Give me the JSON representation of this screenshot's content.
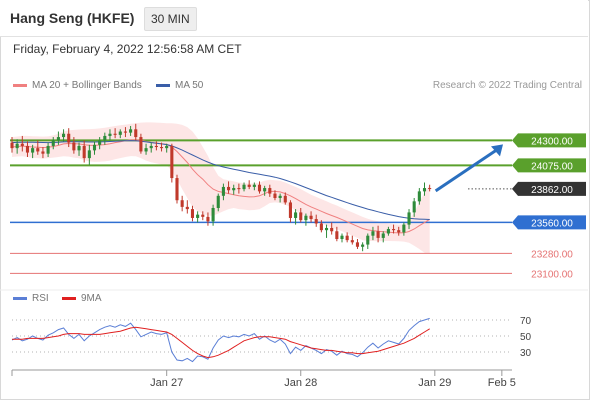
{
  "header": {
    "title": "Hang Seng (HKFE)",
    "period": "30 MIN",
    "timestamp": "Friday, February 4, 2022 12:56:58 AM CET"
  },
  "legend": {
    "ma20_label": "MA 20 + Bollinger Bands",
    "ma50_label": "MA 50",
    "research": "Research © 2022 Trading Central"
  },
  "rsi_legend": {
    "rsi_label": "RSI",
    "ma_label": "9MA"
  },
  "colors": {
    "candle_up": "#2e8b3a",
    "candle_down": "#c0392b",
    "ma20": "#f08080",
    "ma50": "#3a5ea8",
    "bollinger_fill": "#fde2e2",
    "resistance": "#5aa02c",
    "pivot": "#2f6fd1",
    "support": "#e57373",
    "last_price": "#333333",
    "rsi": "#5b7fd6",
    "rsi_ma": "#e02020",
    "arrow": "#2a6fbf"
  },
  "chart_data": [
    {
      "type": "candlestick",
      "title": "Hang Seng (HKFE)",
      "ylim": [
        22950,
        24520
      ],
      "xlim": [
        0,
        96
      ],
      "x_ticks": [
        {
          "x": 30,
          "label": "Jan 27"
        },
        {
          "x": 56,
          "label": "Jan 28"
        },
        {
          "x": 82,
          "label": "Jan 29"
        },
        {
          "x": 95,
          "label": "Feb 5"
        }
      ],
      "levels": [
        {
          "name": "resistance_2",
          "value": 24300,
          "label": "24300.00",
          "kind": "resistance"
        },
        {
          "name": "resistance_1",
          "value": 24075,
          "label": "24075.00",
          "kind": "resistance"
        },
        {
          "name": "last_price",
          "value": 23862,
          "label": "23862.00",
          "kind": "last"
        },
        {
          "name": "pivot",
          "value": 23560,
          "label": "23560.00",
          "kind": "pivot"
        },
        {
          "name": "support_1",
          "value": 23280,
          "label": "23280.00",
          "kind": "support"
        },
        {
          "name": "support_2",
          "value": 23100,
          "label": "23100.00",
          "kind": "support"
        }
      ],
      "candles": [
        [
          24280,
          24330,
          24190,
          24230
        ],
        [
          24230,
          24310,
          24180,
          24270
        ],
        [
          24270,
          24340,
          24200,
          24250
        ],
        [
          24250,
          24290,
          24150,
          24190
        ],
        [
          24190,
          24260,
          24140,
          24230
        ],
        [
          24230,
          24300,
          24170,
          24200
        ],
        [
          24200,
          24240,
          24140,
          24180
        ],
        [
          24180,
          24280,
          24150,
          24250
        ],
        [
          24250,
          24330,
          24220,
          24300
        ],
        [
          24300,
          24380,
          24260,
          24330
        ],
        [
          24330,
          24400,
          24290,
          24360
        ],
        [
          24360,
          24410,
          24240,
          24280
        ],
        [
          24280,
          24330,
          24180,
          24210
        ],
        [
          24210,
          24280,
          24160,
          24250
        ],
        [
          24250,
          24300,
          24100,
          24140
        ],
        [
          24140,
          24260,
          24080,
          24210
        ],
        [
          24210,
          24290,
          24170,
          24260
        ],
        [
          24260,
          24330,
          24220,
          24300
        ],
        [
          24300,
          24370,
          24260,
          24340
        ],
        [
          24340,
          24400,
          24300,
          24360
        ],
        [
          24360,
          24410,
          24320,
          24350
        ],
        [
          24350,
          24400,
          24320,
          24380
        ],
        [
          24380,
          24420,
          24330,
          24370
        ],
        [
          24370,
          24430,
          24340,
          24400
        ],
        [
          24400,
          24450,
          24300,
          24330
        ],
        [
          24330,
          24360,
          24180,
          24200
        ],
        [
          24200,
          24270,
          24170,
          24230
        ],
        [
          24230,
          24280,
          24190,
          24250
        ],
        [
          24250,
          24290,
          24210,
          24240
        ],
        [
          24240,
          24280,
          24200,
          24230
        ],
        [
          24230,
          24270,
          24190,
          24250
        ],
        [
          24250,
          24270,
          23920,
          23960
        ],
        [
          23960,
          23990,
          23730,
          23760
        ],
        [
          23760,
          23800,
          23660,
          23700
        ],
        [
          23700,
          23760,
          23640,
          23680
        ],
        [
          23680,
          23710,
          23570,
          23600
        ],
        [
          23600,
          23660,
          23560,
          23630
        ],
        [
          23630,
          23660,
          23580,
          23610
        ],
        [
          23610,
          23650,
          23530,
          23570
        ],
        [
          23570,
          23720,
          23530,
          23690
        ],
        [
          23690,
          23820,
          23660,
          23800
        ],
        [
          23800,
          23910,
          23760,
          23880
        ],
        [
          23880,
          23930,
          23820,
          23850
        ],
        [
          23850,
          23900,
          23810,
          23870
        ],
        [
          23870,
          23910,
          23820,
          23860
        ],
        [
          23860,
          23920,
          23840,
          23900
        ],
        [
          23900,
          23940,
          23860,
          23880
        ],
        [
          23880,
          23920,
          23850,
          23900
        ],
        [
          23900,
          23930,
          23820,
          23840
        ],
        [
          23840,
          23890,
          23800,
          23870
        ],
        [
          23870,
          23900,
          23790,
          23820
        ],
        [
          23820,
          23850,
          23760,
          23780
        ],
        [
          23780,
          23820,
          23740,
          23800
        ],
        [
          23800,
          23830,
          23720,
          23740
        ],
        [
          23740,
          23760,
          23560,
          23600
        ],
        [
          23600,
          23680,
          23540,
          23650
        ],
        [
          23650,
          23690,
          23560,
          23580
        ],
        [
          23580,
          23640,
          23530,
          23620
        ],
        [
          23620,
          23660,
          23560,
          23590
        ],
        [
          23590,
          23630,
          23520,
          23550
        ],
        [
          23550,
          23580,
          23470,
          23490
        ],
        [
          23490,
          23540,
          23420,
          23510
        ],
        [
          23510,
          23560,
          23450,
          23480
        ],
        [
          23480,
          23520,
          23390,
          23410
        ],
        [
          23410,
          23460,
          23380,
          23440
        ],
        [
          23440,
          23470,
          23380,
          23400
        ],
        [
          23400,
          23440,
          23360,
          23380
        ],
        [
          23380,
          23410,
          23320,
          23340
        ],
        [
          23340,
          23380,
          23300,
          23360
        ],
        [
          23360,
          23460,
          23320,
          23440
        ],
        [
          23440,
          23520,
          23400,
          23480
        ],
        [
          23480,
          23530,
          23380,
          23420
        ],
        [
          23420,
          23480,
          23380,
          23460
        ],
        [
          23460,
          23520,
          23440,
          23500
        ],
        [
          23500,
          23540,
          23460,
          23490
        ],
        [
          23490,
          23520,
          23440,
          23470
        ],
        [
          23470,
          23560,
          23440,
          23540
        ],
        [
          23540,
          23680,
          23500,
          23650
        ],
        [
          23650,
          23780,
          23610,
          23750
        ],
        [
          23750,
          23870,
          23720,
          23840
        ],
        [
          23840,
          23920,
          23800,
          23870
        ],
        [
          23870,
          23900,
          23840,
          23862
        ]
      ],
      "ma20": [
        24240,
        24245,
        24248,
        24245,
        24240,
        24238,
        24235,
        24238,
        24245,
        24255,
        24268,
        24272,
        24270,
        24268,
        24260,
        24256,
        24255,
        24258,
        24262,
        24270,
        24280,
        24288,
        24296,
        24304,
        24306,
        24300,
        24290,
        24282,
        24276,
        24270,
        24266,
        24240,
        24200,
        24150,
        24100,
        24040,
        23990,
        23950,
        23900,
        23860,
        23840,
        23830,
        23820,
        23810,
        23800,
        23795,
        23790,
        23792,
        23800,
        23820,
        23840,
        23840,
        23835,
        23820,
        23800,
        23775,
        23748,
        23722,
        23700,
        23680,
        23660,
        23640,
        23622,
        23605,
        23585,
        23565,
        23545,
        23525,
        23505,
        23492,
        23486,
        23480,
        23476,
        23472,
        23468,
        23465,
        23466,
        23478,
        23500,
        23530,
        23558,
        23588
      ],
      "ma50": [
        24280,
        24282,
        24284,
        24284,
        24283,
        24282,
        24281,
        24280,
        24281,
        24283,
        24286,
        24288,
        24288,
        24288,
        24286,
        24285,
        24285,
        24286,
        24288,
        24290,
        24292,
        24294,
        24296,
        24298,
        24297,
        24292,
        24286,
        24280,
        24274,
        24268,
        24262,
        24250,
        24232,
        24212,
        24190,
        24168,
        24146,
        24124,
        24104,
        24086,
        24072,
        24060,
        24050,
        24040,
        24030,
        24020,
        24010,
        24002,
        23994,
        23986,
        23978,
        23968,
        23956,
        23942,
        23926,
        23910,
        23892,
        23874,
        23856,
        23838,
        23820,
        23802,
        23786,
        23770,
        23754,
        23738,
        23722,
        23708,
        23694,
        23680,
        23668,
        23656,
        23644,
        23632,
        23622,
        23612,
        23604,
        23598,
        23592,
        23590,
        23588,
        23586
      ],
      "bb_upper": [
        24330,
        24335,
        24340,
        24340,
        24338,
        24336,
        24334,
        24336,
        24345,
        24360,
        24380,
        24390,
        24395,
        24398,
        24400,
        24402,
        24404,
        24408,
        24414,
        24422,
        24430,
        24436,
        24442,
        24450,
        24455,
        24460,
        24462,
        24462,
        24460,
        24458,
        24455,
        24455,
        24450,
        24440,
        24420,
        24380,
        24320,
        24240,
        24160,
        24060,
        23980,
        23950,
        23940,
        23930,
        23920,
        23915,
        23910,
        23912,
        23920,
        23935,
        23945,
        23940,
        23935,
        23920,
        23900,
        23880,
        23860,
        23835,
        23810,
        23790,
        23770,
        23750,
        23730,
        23712,
        23690,
        23670,
        23650,
        23630,
        23610,
        23592,
        23580,
        23570,
        23560,
        23552,
        23545,
        23540,
        23545,
        23580,
        23650,
        23740,
        23830,
        23900
      ],
      "bb_lower": [
        24150,
        24155,
        24156,
        24150,
        24142,
        24140,
        24136,
        24140,
        24145,
        24150,
        24156,
        24154,
        24145,
        24138,
        24120,
        24110,
        24106,
        24108,
        24110,
        24118,
        24130,
        24140,
        24150,
        24158,
        24157,
        24140,
        24118,
        24102,
        24092,
        24082,
        24077,
        24025,
        23950,
        23860,
        23780,
        23700,
        23660,
        23640,
        23620,
        23620,
        23640,
        23660,
        23680,
        23690,
        23680,
        23675,
        23670,
        23672,
        23680,
        23705,
        23735,
        23740,
        23735,
        23720,
        23700,
        23670,
        23636,
        23609,
        23590,
        23570,
        23550,
        23530,
        23514,
        23498,
        23480,
        23460,
        23440,
        23420,
        23400,
        23392,
        23392,
        23390,
        23392,
        23392,
        23391,
        23390,
        23387,
        23376,
        23350,
        23320,
        23286,
        23276
      ]
    },
    {
      "type": "line",
      "title": "RSI",
      "ylim": [
        10,
        80
      ],
      "y_ticks": [
        70,
        50,
        30
      ],
      "series": [
        {
          "name": "RSI",
          "values": [
            45,
            48,
            44,
            46,
            50,
            47,
            45,
            51,
            54,
            58,
            60,
            52,
            47,
            52,
            44,
            50,
            54,
            58,
            61,
            63,
            61,
            64,
            62,
            66,
            58,
            49,
            52,
            55,
            53,
            52,
            54,
            30,
            20,
            19,
            22,
            18,
            25,
            24,
            21,
            35,
            45,
            50,
            48,
            50,
            49,
            52,
            50,
            53,
            46,
            50,
            45,
            42,
            46,
            40,
            28,
            36,
            32,
            38,
            35,
            32,
            28,
            33,
            31,
            26,
            31,
            28,
            27,
            24,
            29,
            36,
            41,
            35,
            40,
            44,
            42,
            40,
            47,
            57,
            63,
            68,
            70,
            72
          ]
        },
        {
          "name": "9MA",
          "values": [
            46,
            46,
            46,
            47,
            47,
            47,
            47,
            48,
            49,
            50,
            52,
            53,
            53,
            53,
            52,
            52,
            52,
            52,
            53,
            54,
            55,
            56,
            58,
            60,
            61,
            60,
            59,
            58,
            57,
            56,
            55,
            52,
            47,
            42,
            37,
            32,
            28,
            25,
            23,
            24,
            26,
            29,
            32,
            36,
            40,
            44,
            46,
            48,
            49,
            49,
            49,
            48,
            47,
            46,
            43,
            41,
            39,
            37,
            35,
            34,
            33,
            32,
            32,
            31,
            30,
            29,
            29,
            28,
            28,
            29,
            30,
            31,
            33,
            35,
            37,
            39,
            41,
            44,
            47,
            51,
            55,
            59
          ]
        }
      ]
    }
  ]
}
